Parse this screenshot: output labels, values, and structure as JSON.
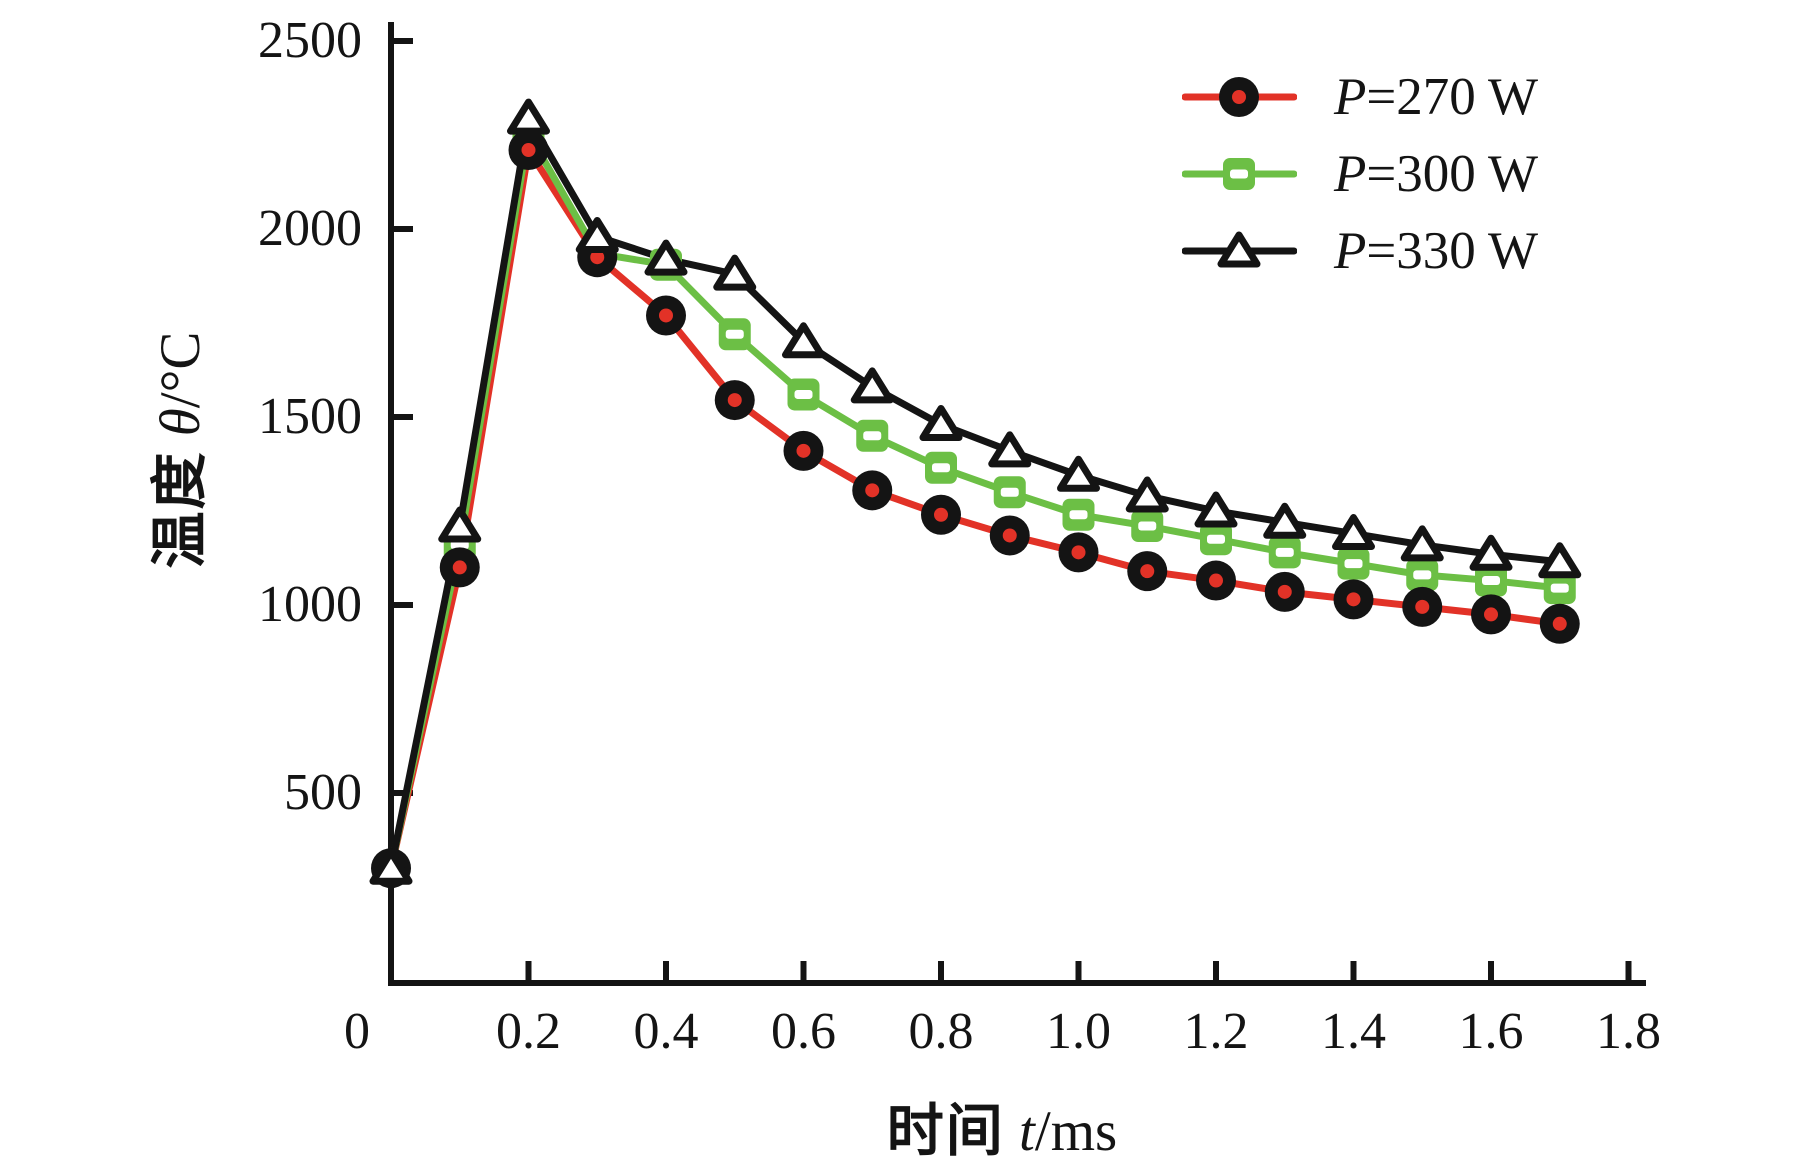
{
  "figure": {
    "background": "#ffffff"
  },
  "y_axis": {
    "title_cjk": "温度",
    "title_symbol": "θ",
    "title_unit": "/°C",
    "tick_labels": [
      "2500",
      "2000",
      "1500",
      "1000",
      "500"
    ]
  },
  "x_axis": {
    "title_cjk": "时间",
    "title_symbol": "t",
    "title_unit": "/ms",
    "tick_labels": [
      "0",
      "0.2",
      "0.4",
      "0.6",
      "0.8",
      "1.0",
      "1.2",
      "1.4",
      "1.6",
      "1.8"
    ]
  },
  "legend": {
    "entries": [
      {
        "var": "P",
        "rest": "=270 W",
        "label": "P=270 W",
        "color": "#e23227",
        "marker": "donut-circle"
      },
      {
        "var": "P",
        "rest": "=300 W",
        "label": "P=300 W",
        "color": "#6cbf45",
        "marker": "open-square"
      },
      {
        "var": "P",
        "rest": "=330 W",
        "label": "P=330 W",
        "color": "#141414",
        "marker": "open-triangle"
      }
    ]
  },
  "chart_data": {
    "type": "line",
    "title": "",
    "xlabel": "时间 t/ms",
    "ylabel": "温度 θ/°C",
    "xlim": [
      0,
      1.8
    ],
    "ylim": [
      0,
      2500
    ],
    "x_ticks": [
      0.2,
      0.4,
      0.6,
      0.8,
      1.0,
      1.2,
      1.4,
      1.6,
      1.8
    ],
    "y_ticks": [
      500,
      1000,
      1500,
      2000,
      2500
    ],
    "grid": false,
    "legend_position": "top-right",
    "x": [
      0,
      0.1,
      0.2,
      0.3,
      0.4,
      0.5,
      0.6,
      0.7,
      0.8,
      0.9,
      1.0,
      1.1,
      1.2,
      1.3,
      1.4,
      1.5,
      1.6,
      1.7
    ],
    "series": [
      {
        "name": "P=270 W",
        "color": "#e23227",
        "marker": "donut-circle",
        "values": [
          300,
          1100,
          2210,
          1925,
          1770,
          1545,
          1410,
          1305,
          1240,
          1185,
          1140,
          1090,
          1065,
          1035,
          1015,
          995,
          975,
          950
        ]
      },
      {
        "name": "P=300 W",
        "color": "#6cbf45",
        "marker": "open-square",
        "values": [
          300,
          1160,
          2255,
          1935,
          1905,
          1720,
          1560,
          1450,
          1365,
          1300,
          1240,
          1210,
          1175,
          1140,
          1110,
          1080,
          1065,
          1045
        ]
      },
      {
        "name": "P=330 W",
        "color": "#141414",
        "marker": "open-triangle",
        "values": [
          300,
          1210,
          2295,
          1980,
          1920,
          1880,
          1700,
          1580,
          1480,
          1410,
          1345,
          1290,
          1250,
          1220,
          1190,
          1160,
          1135,
          1115
        ]
      }
    ]
  }
}
